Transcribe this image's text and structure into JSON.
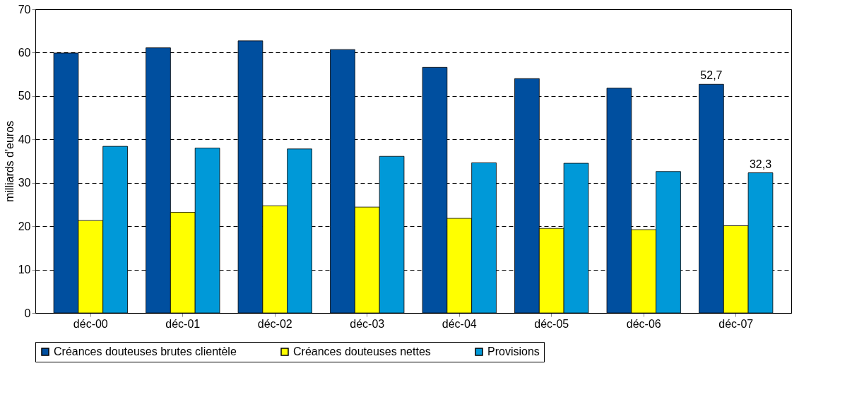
{
  "chart_data": {
    "type": "bar",
    "ylabel": "milliards d'euros",
    "categories": [
      "déc-00",
      "déc-01",
      "déc-02",
      "déc-03",
      "déc-04",
      "déc-05",
      "déc-06",
      "déc-07"
    ],
    "series": [
      {
        "name": "Créances douteuses brutes clientèle",
        "color": "#004f9f",
        "values": [
          59.9,
          61.1,
          62.7,
          60.7,
          56.6,
          54.0,
          51.8,
          52.7
        ],
        "value_labels": [
          null,
          null,
          null,
          null,
          null,
          null,
          null,
          "52,7"
        ]
      },
      {
        "name": "Créances douteuses nettes",
        "color": "#ffff00",
        "values": [
          21.3,
          23.2,
          24.7,
          24.4,
          21.8,
          19.5,
          19.2,
          20.1
        ]
      },
      {
        "name": "Provisions",
        "color": "#0099d8",
        "values": [
          38.4,
          38.0,
          37.8,
          36.1,
          34.6,
          34.5,
          32.6,
          32.3
        ],
        "value_labels": [
          null,
          null,
          null,
          null,
          null,
          null,
          null,
          "32,3"
        ]
      }
    ],
    "ylim": [
      0,
      70
    ],
    "yticks": [
      0,
      10,
      20,
      30,
      40,
      50,
      60,
      70
    ],
    "grid": "y",
    "legend": "bottom"
  }
}
